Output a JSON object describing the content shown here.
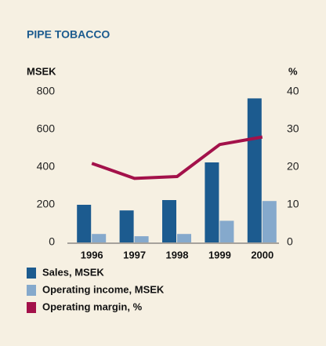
{
  "chart_data": {
    "type": "bar",
    "title": "PIPE TOBACCO",
    "y_label": "MSEK",
    "y2_label": "%",
    "categories": [
      "1996",
      "1997",
      "1998",
      "1999",
      "2000"
    ],
    "series": [
      {
        "name": "Sales, MSEK",
        "type": "bar",
        "color": "#1c5b8f",
        "values": [
          200,
          170,
          225,
          425,
          765
        ]
      },
      {
        "name": "Operating income, MSEK",
        "type": "bar",
        "color": "#85a9cc",
        "values": [
          45,
          33,
          45,
          115,
          220
        ]
      },
      {
        "name": "Operating margin, %",
        "type": "line",
        "axis": "y2",
        "color": "#a3114a",
        "values": [
          21,
          17,
          17.5,
          26,
          28
        ]
      }
    ],
    "ylim": [
      0,
      800
    ],
    "yticks": [
      0,
      200,
      400,
      600,
      800
    ],
    "y2lim": [
      0,
      40
    ],
    "y2ticks": [
      0,
      10,
      20,
      30,
      40
    ],
    "grid": false
  }
}
